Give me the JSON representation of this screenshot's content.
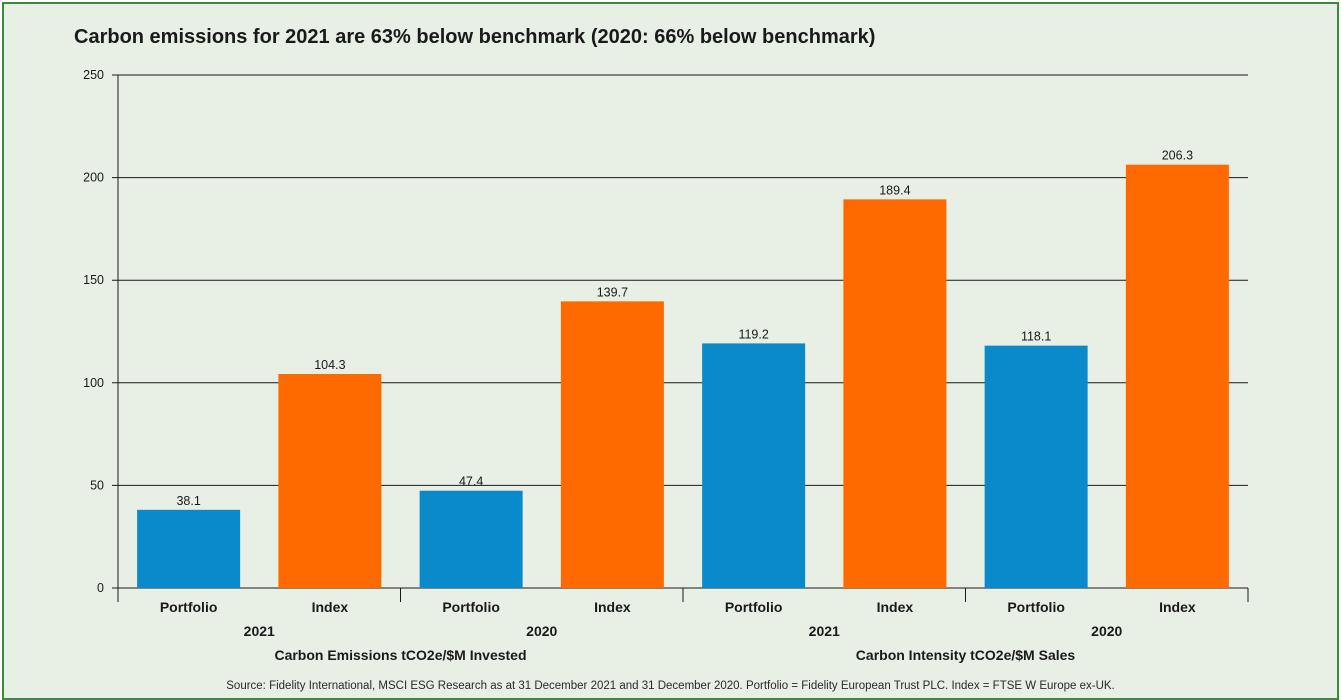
{
  "title": "Carbon emissions for 2021 are 63% below benchmark (2020: 66% below benchmark)",
  "source": "Source: Fidelity International, MSCI ESG Research as at 31 December 2021 and 31 December 2020. Portfolio = Fidelity European Trust PLC. Index = FTSE W Europe ex-UK.",
  "colors": {
    "portfolio": "#0a8acb",
    "index": "#ff6a00",
    "frame": "#3a8a3a",
    "background": "#e8efe5"
  },
  "chart_data": {
    "type": "bar",
    "title": "Carbon emissions for 2021 are 63% below benchmark (2020: 66% below benchmark)",
    "ylim": [
      0,
      250
    ],
    "yticks": [
      0,
      50,
      100,
      150,
      200,
      250
    ],
    "grid": true,
    "categories": [
      "Portfolio",
      "Index",
      "Portfolio",
      "Index",
      "Portfolio",
      "Index",
      "Portfolio",
      "Index"
    ],
    "values": [
      38.1,
      104.3,
      47.4,
      139.7,
      119.2,
      189.4,
      118.1,
      206.3
    ],
    "value_labels": [
      "38.1",
      "104.3",
      "47.4",
      "139.7",
      "119.2",
      "189.4",
      "118.1",
      "206.3"
    ],
    "bar_series": [
      "portfolio",
      "index",
      "portfolio",
      "index",
      "portfolio",
      "index",
      "portfolio",
      "index"
    ],
    "year_groups": [
      "2021",
      "2020",
      "2021",
      "2020"
    ],
    "metric_groups": [
      "Carbon Emissions tCO2e/$M Invested",
      "Carbon Intensity tCO2e/$M Sales"
    ]
  }
}
